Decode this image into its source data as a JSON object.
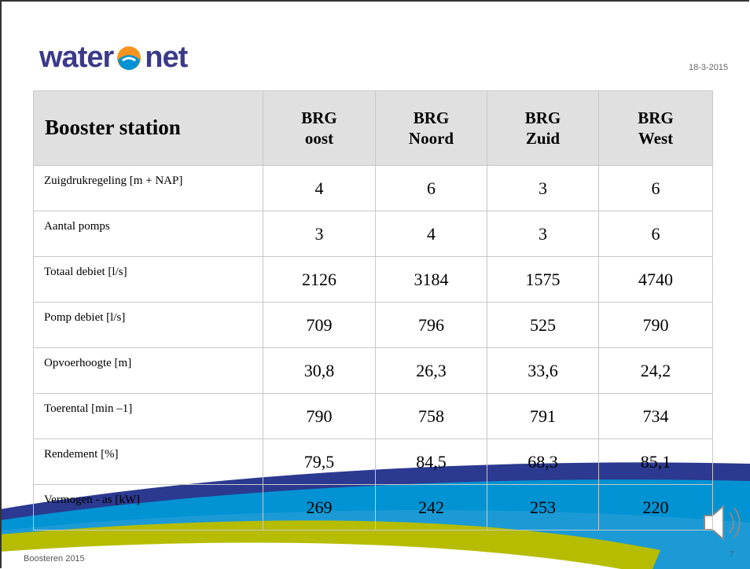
{
  "header": {
    "logo": [
      "water",
      "net"
    ],
    "date": "18-3-2015"
  },
  "table": {
    "columns": [
      [
        "Booster station"
      ],
      [
        "BRG",
        "oost"
      ],
      [
        "BRG",
        "Noord"
      ],
      [
        "BRG",
        "Zuid"
      ],
      [
        "BRG",
        "West"
      ]
    ],
    "rows": [
      [
        "Zuigdrukregeling  [m + NAP]",
        "4",
        "6",
        "3",
        "6"
      ],
      [
        "Aantal pomps",
        "3",
        "4",
        "3",
        "6"
      ],
      [
        "Totaal debiet  [l/s]",
        "2126",
        "3184",
        "1575",
        "4740"
      ],
      [
        "Pomp debiet  [l/s]",
        "709",
        "796",
        "525",
        "790"
      ],
      [
        "Opvoerhoogte  [m]",
        "30,8",
        "26,3",
        "33,6",
        "24,2"
      ],
      [
        "Toerental  [min –1]",
        "790",
        "758",
        "791",
        "734"
      ],
      [
        "Rendement   [%]",
        "79,5",
        "84,5",
        "68,3",
        "85,1"
      ],
      [
        "Vermogen - as  [kW]",
        "269",
        "242",
        "253",
        "220"
      ]
    ]
  },
  "footer": {
    "text": "Boosteren 2015",
    "page": "7"
  }
}
